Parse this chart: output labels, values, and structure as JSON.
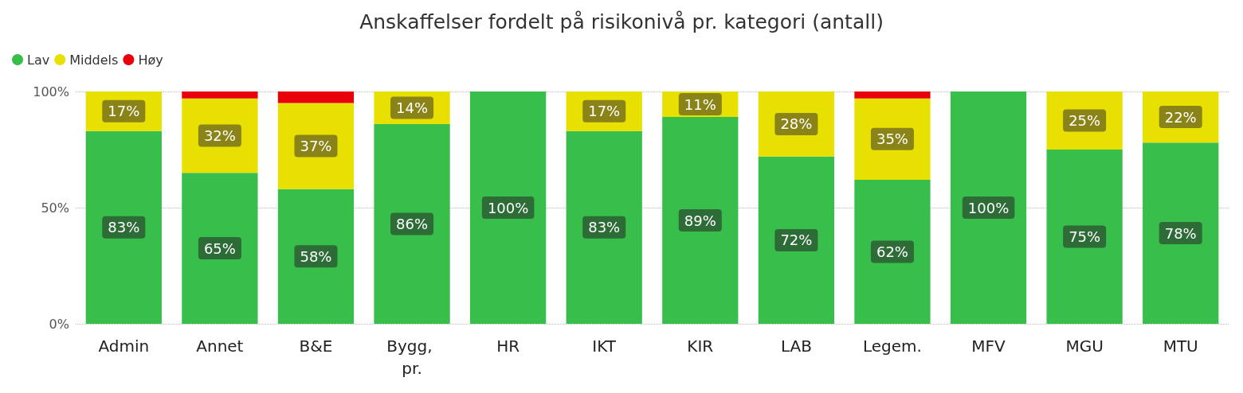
{
  "chart_data": {
    "type": "bar",
    "title": "Anskaffelser fordelt på risikonivå pr. kategori (antall)",
    "categories": [
      "Admin",
      "Annet",
      "B&E",
      "Bygg, pr.",
      "HR",
      "IKT",
      "KIR",
      "LAB",
      "Legem.",
      "MFV",
      "MGU",
      "MTU"
    ],
    "stacked": true,
    "series": [
      {
        "name": "Lav",
        "color": "#37be4b",
        "values": [
          83,
          65,
          58,
          86,
          100,
          83,
          89,
          72,
          62,
          100,
          75,
          78
        ],
        "value_labels": [
          "83%",
          "65%",
          "58%",
          "86%",
          "100%",
          "83%",
          "89%",
          "72%",
          "62%",
          "100%",
          "75%",
          "78%"
        ]
      },
      {
        "name": "Middels",
        "color": "#e8e000",
        "values": [
          17,
          32,
          37,
          14,
          0,
          17,
          11,
          28,
          35,
          0,
          25,
          22
        ],
        "value_labels": [
          "17%",
          "32%",
          "37%",
          "14%",
          null,
          "17%",
          "11%",
          "28%",
          "35%",
          null,
          "25%",
          "22%"
        ]
      },
      {
        "name": "Høy",
        "color": "#e8000b",
        "values": [
          0,
          3,
          5,
          0,
          0,
          0,
          0,
          0,
          3,
          0,
          0,
          0
        ],
        "value_labels": [
          null,
          null,
          null,
          null,
          null,
          null,
          null,
          null,
          null,
          null,
          null,
          null
        ]
      }
    ],
    "ylim": [
      0,
      100
    ],
    "yticks": [
      {
        "value": 0,
        "label": "0%"
      },
      {
        "value": 50,
        "label": "50%"
      },
      {
        "value": 100,
        "label": "100%"
      }
    ],
    "grid": "y",
    "legend": "top left"
  }
}
